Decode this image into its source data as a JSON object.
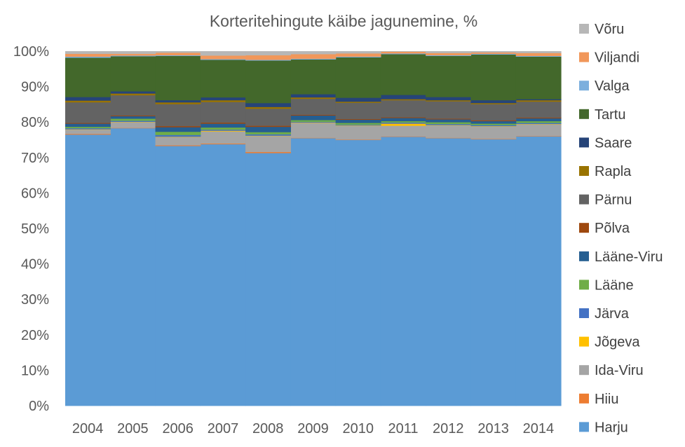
{
  "chart_data": {
    "type": "area",
    "stacked_percent": true,
    "step": true,
    "title": "Korteritehingute käibe jagunemine, %",
    "xlabel": "",
    "ylabel": "",
    "ylim": [
      0,
      100
    ],
    "y_tick_labels": [
      "0%",
      "10%",
      "20%",
      "30%",
      "40%",
      "50%",
      "60%",
      "70%",
      "80%",
      "90%",
      "100%"
    ],
    "grid": false,
    "legend_position": "right",
    "categories": [
      "2004",
      "2005",
      "2006",
      "2007",
      "2008",
      "2009",
      "2010",
      "2011",
      "2012",
      "2013",
      "2014"
    ],
    "series": [
      {
        "name": "Harju",
        "color": "#5B9BD5",
        "values": [
          76.5,
          78.3,
          73.3,
          73.8,
          71.3,
          75.5,
          75.0,
          75.9,
          75.5,
          75.2,
          76.0
        ]
      },
      {
        "name": "Hiiu",
        "color": "#ED7D31",
        "values": [
          0.2,
          0.1,
          0.2,
          0.2,
          0.3,
          0.1,
          0.1,
          0.1,
          0.1,
          0.1,
          0.1
        ]
      },
      {
        "name": "Ida-Viru",
        "color": "#A5A5A5",
        "values": [
          1.2,
          1.6,
          2.3,
          3.4,
          4.5,
          4.2,
          3.9,
          3.0,
          3.5,
          3.5,
          3.3
        ]
      },
      {
        "name": "Jõgeva",
        "color": "#FFC000",
        "values": [
          0.1,
          0.1,
          0.1,
          0.2,
          0.1,
          0.1,
          0.1,
          0.6,
          0.1,
          0.1,
          0.1
        ]
      },
      {
        "name": "Järva",
        "color": "#4472C4",
        "values": [
          0.3,
          0.3,
          0.5,
          0.3,
          0.4,
          0.2,
          0.2,
          0.3,
          0.3,
          0.3,
          0.3
        ]
      },
      {
        "name": "Lääne",
        "color": "#70AD47",
        "values": [
          0.4,
          0.6,
          0.9,
          0.6,
          0.6,
          0.5,
          0.5,
          0.4,
          0.5,
          0.4,
          0.5
        ]
      },
      {
        "name": "Lääne-Viru",
        "color": "#255E91",
        "values": [
          0.9,
          0.7,
          1.3,
          1.1,
          1.5,
          1.3,
          0.9,
          0.9,
          0.8,
          0.7,
          0.8
        ]
      },
      {
        "name": "Põlva",
        "color": "#9E480E",
        "values": [
          0.2,
          0.2,
          0.3,
          0.3,
          0.3,
          0.2,
          0.2,
          0.2,
          0.2,
          0.2,
          0.2
        ]
      },
      {
        "name": "Pärnu",
        "color": "#636363",
        "values": [
          5.8,
          5.7,
          6.2,
          5.8,
          4.8,
          4.5,
          4.6,
          4.8,
          4.9,
          4.6,
          4.5
        ]
      },
      {
        "name": "Rapla",
        "color": "#997300",
        "values": [
          0.5,
          0.5,
          0.5,
          0.5,
          0.5,
          0.4,
          0.3,
          0.3,
          0.3,
          0.3,
          0.4
        ]
      },
      {
        "name": "Saare",
        "color": "#264478",
        "values": [
          1.0,
          0.6,
          0.6,
          0.8,
          1.1,
          0.9,
          1.1,
          1.2,
          0.9,
          0.8,
          0.3
        ]
      },
      {
        "name": "Tartu",
        "color": "#43682B",
        "values": [
          11.1,
          9.9,
          12.5,
          10.6,
          12.0,
          9.8,
          11.4,
          11.5,
          11.6,
          12.9,
          12.0
        ]
      },
      {
        "name": "Valga",
        "color": "#7CAFDD",
        "values": [
          0.3,
          0.2,
          0.2,
          0.2,
          0.2,
          0.2,
          0.2,
          0.2,
          0.2,
          0.2,
          0.2
        ]
      },
      {
        "name": "Viljandi",
        "color": "#F1975A",
        "values": [
          0.8,
          0.5,
          0.7,
          1.0,
          1.3,
          1.3,
          0.9,
          0.5,
          0.6,
          0.4,
          0.8
        ]
      },
      {
        "name": "Võru",
        "color": "#B7B7B7",
        "values": [
          0.7,
          0.7,
          0.4,
          1.2,
          1.1,
          0.8,
          0.6,
          0.1,
          0.5,
          0.3,
          0.5
        ]
      }
    ]
  }
}
